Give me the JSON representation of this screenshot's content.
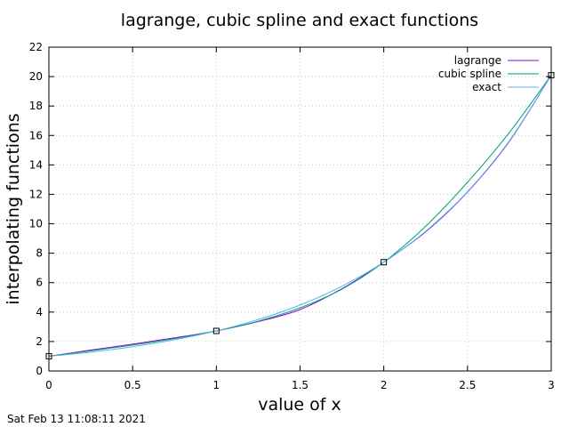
{
  "chart_data": {
    "type": "line",
    "title": "lagrange, cubic spline and exact functions",
    "xlabel": "value of x",
    "ylabel": "interpolating functions",
    "xlim": [
      0,
      3
    ],
    "ylim": [
      0,
      22
    ],
    "xticks": [
      0,
      0.5,
      1,
      1.5,
      2,
      2.5,
      3
    ],
    "xtick_labels": [
      "0",
      "0.5",
      "1",
      "1.5",
      "2",
      "2.5",
      "3"
    ],
    "yticks": [
      0,
      2,
      4,
      6,
      8,
      10,
      12,
      14,
      16,
      18,
      20,
      22
    ],
    "ytick_labels": [
      "0",
      "2",
      "4",
      "6",
      "8",
      "10",
      "12",
      "14",
      "16",
      "18",
      "20",
      "22"
    ],
    "grid": true,
    "legend_position": "top-right",
    "series": [
      {
        "name": "lagrange",
        "color": "#9400d3",
        "x": [
          0,
          0.25,
          0.5,
          0.75,
          1,
          1.25,
          1.5,
          1.75,
          2,
          2.25,
          2.5,
          2.75,
          3
        ],
        "y": [
          1.0,
          1.42,
          1.82,
          2.25,
          2.72,
          3.35,
          4.17,
          5.59,
          7.39,
          9.45,
          12.15,
          15.6,
          20.09
        ]
      },
      {
        "name": "cubic spline",
        "color": "#009e73",
        "x": [
          0,
          0.25,
          0.5,
          0.75,
          1,
          1.25,
          1.5,
          1.75,
          2,
          2.25,
          2.5,
          2.75,
          3
        ],
        "y": [
          1.0,
          1.37,
          1.76,
          2.2,
          2.72,
          3.38,
          4.29,
          5.56,
          7.39,
          9.83,
          12.82,
          16.2,
          20.09
        ]
      },
      {
        "name": "exact",
        "color": "#56b4e9",
        "x": [
          0,
          0.25,
          0.5,
          0.75,
          1,
          1.25,
          1.5,
          1.75,
          2,
          2.25,
          2.5,
          2.75,
          3
        ],
        "y": [
          1.0,
          1.28,
          1.65,
          2.12,
          2.72,
          3.49,
          4.48,
          5.75,
          7.39,
          9.49,
          12.18,
          15.64,
          20.09
        ]
      }
    ],
    "markers": {
      "x": [
        0,
        1,
        2,
        3
      ],
      "y": [
        1.0,
        2.72,
        7.39,
        20.09
      ]
    }
  },
  "footer": {
    "timestamp": "Sat Feb 13 11:08:11 2021"
  }
}
